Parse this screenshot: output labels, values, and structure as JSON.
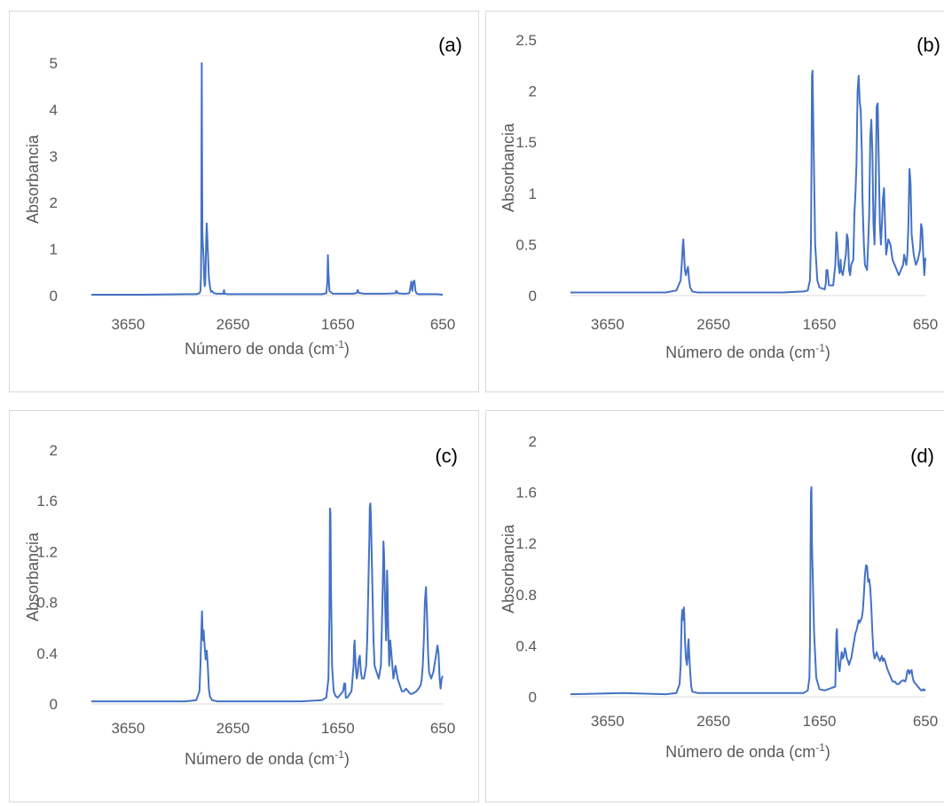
{
  "chart_data": [
    {
      "type": "line",
      "panel_label": "(a)",
      "xlabel": "Número de onda (cm-1)",
      "ylabel": "Absorbancia",
      "xlim": [
        4000,
        650
      ],
      "ylim": [
        0,
        5
      ],
      "x_ticks": [
        "3650",
        "2650",
        "1650",
        "650"
      ],
      "y_ticks": [
        "0",
        "1",
        "2",
        "3",
        "4",
        "5"
      ],
      "line_color": "#4472c4",
      "series": [
        {
          "x": [
            4000,
            3500,
            3100,
            3000,
            2970,
            2960,
            2955,
            2952,
            2950,
            2948,
            2945,
            2942,
            2938,
            2930,
            2925,
            2920,
            2915,
            2910,
            2905,
            2900,
            2890,
            2880,
            2870,
            2860,
            2850,
            2840,
            2830,
            2800,
            2740,
            2735,
            2730,
            2700,
            2000,
            1800,
            1760,
            1750,
            1745,
            1740,
            1730,
            1700,
            1600,
            1500,
            1470,
            1460,
            1450,
            1400,
            1200,
            1100,
            1095,
            1090,
            1080,
            1030,
            1000,
            970,
            960,
            950,
            940,
            930,
            920,
            910,
            900,
            890,
            880,
            860,
            800,
            700,
            650
          ],
          "y": [
            0.02,
            0.02,
            0.03,
            0.03,
            0.05,
            0.1,
            0.4,
            1.2,
            3.0,
            5.0,
            3.2,
            1.4,
            1.15,
            0.8,
            0.4,
            0.2,
            0.25,
            0.6,
            1.2,
            1.55,
            1.0,
            0.4,
            0.2,
            0.08,
            0.1,
            0.07,
            0.05,
            0.04,
            0.04,
            0.12,
            0.04,
            0.03,
            0.03,
            0.03,
            0.05,
            0.3,
            0.87,
            0.5,
            0.1,
            0.04,
            0.04,
            0.04,
            0.06,
            0.12,
            0.06,
            0.04,
            0.04,
            0.05,
            0.1,
            0.1,
            0.05,
            0.04,
            0.04,
            0.05,
            0.15,
            0.3,
            0.1,
            0.3,
            0.32,
            0.1,
            0.05,
            0.04,
            0.03,
            0.03,
            0.03,
            0.03,
            0.02
          ]
        }
      ]
    },
    {
      "type": "line",
      "panel_label": "(b)",
      "xlabel": "Número de onda (cm-1)",
      "ylabel": "Absorbancia",
      "xlim": [
        4000,
        650
      ],
      "ylim": [
        0,
        2.5
      ],
      "x_ticks": [
        "3650",
        "2650",
        "1650",
        "650"
      ],
      "y_ticks": [
        "0",
        "0.5",
        "1",
        "1.5",
        "2",
        "2.5"
      ],
      "line_color": "#4472c4",
      "series": [
        {
          "x": [
            4000,
            3500,
            3100,
            3000,
            2960,
            2950,
            2940,
            2935,
            2930,
            2920,
            2910,
            2900,
            2890,
            2880,
            2870,
            2850,
            2800,
            2000,
            1800,
            1760,
            1740,
            1730,
            1725,
            1720,
            1715,
            1705,
            1690,
            1670,
            1650,
            1600,
            1590,
            1585,
            1580,
            1575,
            1560,
            1520,
            1500,
            1495,
            1490,
            1480,
            1470,
            1460,
            1455,
            1450,
            1445,
            1430,
            1400,
            1390,
            1380,
            1375,
            1370,
            1360,
            1350,
            1330,
            1320,
            1310,
            1300,
            1290,
            1280,
            1270,
            1260,
            1250,
            1245,
            1240,
            1230,
            1220,
            1200,
            1190,
            1180,
            1170,
            1160,
            1150,
            1140,
            1130,
            1120,
            1110,
            1100,
            1090,
            1080,
            1070,
            1060,
            1050,
            1040,
            1030,
            1020,
            1000,
            980,
            960,
            940,
            920,
            900,
            880,
            860,
            850,
            840,
            830,
            820,
            810,
            800,
            790,
            780,
            760,
            740,
            720,
            700,
            690,
            680,
            670,
            660,
            650
          ],
          "y": [
            0.03,
            0.03,
            0.03,
            0.05,
            0.15,
            0.3,
            0.5,
            0.55,
            0.45,
            0.25,
            0.2,
            0.25,
            0.28,
            0.15,
            0.08,
            0.04,
            0.03,
            0.03,
            0.04,
            0.05,
            0.15,
            0.5,
            1.2,
            2.15,
            2.2,
            1.5,
            0.5,
            0.15,
            0.08,
            0.06,
            0.12,
            0.25,
            0.22,
            0.25,
            0.1,
            0.1,
            0.3,
            0.45,
            0.62,
            0.5,
            0.3,
            0.22,
            0.25,
            0.35,
            0.25,
            0.2,
            0.4,
            0.6,
            0.55,
            0.4,
            0.25,
            0.2,
            0.3,
            0.35,
            0.8,
            1.0,
            1.3,
            2.0,
            2.15,
            1.9,
            1.8,
            1.4,
            1.0,
            0.8,
            0.5,
            0.3,
            0.25,
            0.5,
            0.8,
            1.55,
            1.72,
            1.4,
            0.7,
            0.5,
            1.0,
            1.85,
            1.88,
            1.3,
            0.7,
            0.5,
            0.7,
            0.95,
            1.05,
            0.7,
            0.4,
            0.55,
            0.5,
            0.35,
            0.3,
            0.25,
            0.2,
            0.25,
            0.3,
            0.4,
            0.35,
            0.3,
            0.4,
            0.7,
            1.24,
            1.1,
            0.6,
            0.4,
            0.3,
            0.35,
            0.45,
            0.7,
            0.65,
            0.4,
            0.2,
            0.37
          ]
        }
      ]
    },
    {
      "type": "line",
      "panel_label": "(c)",
      "xlabel": "Número de onda (cm-1)",
      "ylabel": "Absorbancia",
      "xlim": [
        4000,
        650
      ],
      "ylim": [
        0,
        2
      ],
      "x_ticks": [
        "3650",
        "2650",
        "1650",
        "650"
      ],
      "y_ticks": [
        "0",
        "0.4",
        "0.8",
        "1.2",
        "1.6",
        "2"
      ],
      "line_color": "#4472c4",
      "series": [
        {
          "x": [
            4000,
            3500,
            3100,
            3000,
            2970,
            2960,
            2950,
            2945,
            2940,
            2935,
            2930,
            2920,
            2910,
            2900,
            2890,
            2880,
            2870,
            2850,
            2800,
            2000,
            1800,
            1760,
            1740,
            1730,
            1725,
            1720,
            1715,
            1705,
            1690,
            1670,
            1650,
            1600,
            1590,
            1585,
            1580,
            1575,
            1560,
            1520,
            1500,
            1495,
            1490,
            1480,
            1470,
            1460,
            1455,
            1450,
            1440,
            1430,
            1420,
            1400,
            1380,
            1370,
            1360,
            1350,
            1345,
            1340,
            1335,
            1330,
            1320,
            1310,
            1300,
            1280,
            1260,
            1240,
            1230,
            1220,
            1215,
            1210,
            1200,
            1190,
            1185,
            1180,
            1175,
            1170,
            1160,
            1150,
            1140,
            1130,
            1120,
            1100,
            1080,
            1060,
            1040,
            1020,
            1000,
            980,
            960,
            940,
            920,
            900,
            880,
            860,
            850,
            840,
            830,
            820,
            810,
            800,
            790,
            780,
            760,
            740,
            720,
            700,
            690,
            680,
            670,
            660,
            650
          ],
          "y": [
            0.02,
            0.02,
            0.02,
            0.03,
            0.1,
            0.3,
            0.6,
            0.73,
            0.58,
            0.5,
            0.58,
            0.45,
            0.35,
            0.42,
            0.3,
            0.12,
            0.06,
            0.03,
            0.02,
            0.02,
            0.03,
            0.05,
            0.2,
            0.7,
            1.54,
            1.5,
            0.9,
            0.3,
            0.1,
            0.06,
            0.05,
            0.1,
            0.16,
            0.12,
            0.16,
            0.05,
            0.05,
            0.1,
            0.3,
            0.45,
            0.5,
            0.3,
            0.2,
            0.25,
            0.3,
            0.35,
            0.38,
            0.25,
            0.2,
            0.2,
            0.3,
            0.5,
            0.9,
            1.3,
            1.55,
            1.58,
            1.5,
            1.3,
            0.9,
            0.5,
            0.3,
            0.25,
            0.2,
            0.3,
            0.6,
            1.0,
            1.28,
            1.2,
            0.8,
            0.5,
            0.8,
            1.05,
            0.9,
            0.6,
            0.3,
            0.5,
            0.4,
            0.3,
            0.2,
            0.3,
            0.2,
            0.15,
            0.1,
            0.1,
            0.12,
            0.1,
            0.08,
            0.08,
            0.09,
            0.1,
            0.12,
            0.15,
            0.2,
            0.3,
            0.5,
            0.8,
            0.92,
            0.7,
            0.4,
            0.25,
            0.2,
            0.25,
            0.35,
            0.46,
            0.4,
            0.2,
            0.12,
            0.2,
            0.22
          ]
        }
      ]
    },
    {
      "type": "line",
      "panel_label": "(d)",
      "xlabel": "Número de onda (cm-1)",
      "ylabel": "Absorbancia",
      "xlim": [
        4000,
        650
      ],
      "ylim": [
        0,
        2
      ],
      "x_ticks": [
        "3650",
        "2650",
        "1650",
        "650"
      ],
      "y_ticks": [
        "0",
        "0.4",
        "0.8",
        "1.2",
        "1.6",
        "2"
      ],
      "line_color": "#4472c4",
      "series": [
        {
          "x": [
            4000,
            3500,
            3100,
            3000,
            2970,
            2960,
            2955,
            2950,
            2945,
            2940,
            2935,
            2930,
            2925,
            2920,
            2910,
            2900,
            2895,
            2890,
            2885,
            2880,
            2870,
            2860,
            2850,
            2800,
            2000,
            1800,
            1760,
            1745,
            1740,
            1735,
            1730,
            1725,
            1720,
            1700,
            1680,
            1650,
            1600,
            1500,
            1495,
            1490,
            1485,
            1480,
            1470,
            1460,
            1450,
            1440,
            1430,
            1420,
            1410,
            1400,
            1390,
            1380,
            1370,
            1360,
            1350,
            1340,
            1330,
            1320,
            1310,
            1300,
            1290,
            1280,
            1270,
            1260,
            1250,
            1240,
            1230,
            1220,
            1210,
            1200,
            1190,
            1180,
            1170,
            1160,
            1150,
            1140,
            1130,
            1120,
            1110,
            1100,
            1090,
            1080,
            1070,
            1060,
            1050,
            1040,
            1030,
            1020,
            1010,
            1000,
            990,
            980,
            960,
            940,
            920,
            900,
            880,
            860,
            840,
            830,
            820,
            810,
            800,
            790,
            780,
            770,
            760,
            740,
            720,
            700,
            690,
            680,
            670,
            660,
            650
          ],
          "y": [
            0.02,
            0.03,
            0.02,
            0.03,
            0.1,
            0.25,
            0.45,
            0.62,
            0.68,
            0.6,
            0.65,
            0.7,
            0.62,
            0.45,
            0.3,
            0.25,
            0.3,
            0.4,
            0.45,
            0.35,
            0.2,
            0.08,
            0.04,
            0.03,
            0.03,
            0.03,
            0.05,
            0.15,
            0.4,
            0.9,
            1.6,
            1.64,
            1.2,
            0.5,
            0.15,
            0.06,
            0.05,
            0.08,
            0.3,
            0.5,
            0.53,
            0.4,
            0.25,
            0.2,
            0.28,
            0.35,
            0.3,
            0.32,
            0.38,
            0.35,
            0.3,
            0.28,
            0.25,
            0.28,
            0.3,
            0.35,
            0.4,
            0.45,
            0.5,
            0.52,
            0.56,
            0.6,
            0.58,
            0.6,
            0.62,
            0.68,
            0.8,
            0.95,
            1.03,
            1.02,
            0.9,
            0.92,
            0.85,
            0.7,
            0.5,
            0.35,
            0.3,
            0.32,
            0.35,
            0.32,
            0.3,
            0.28,
            0.3,
            0.32,
            0.28,
            0.3,
            0.28,
            0.25,
            0.22,
            0.2,
            0.18,
            0.16,
            0.12,
            0.12,
            0.1,
            0.1,
            0.12,
            0.13,
            0.12,
            0.15,
            0.2,
            0.21,
            0.18,
            0.2,
            0.21,
            0.15,
            0.12,
            0.1,
            0.08,
            0.06,
            0.05,
            0.05,
            0.06,
            0.05,
            0.06
          ]
        }
      ]
    }
  ]
}
